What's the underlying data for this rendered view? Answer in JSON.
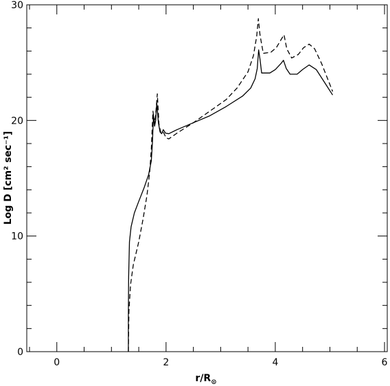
{
  "chart_data": {
    "type": "line",
    "title": "",
    "xlabel": "r/R",
    "xlabel_sub": "⊙",
    "ylabel": "Log D [cm² sec⁻¹]",
    "xlim": [
      -0.55,
      6.05
    ],
    "ylim": [
      0,
      30
    ],
    "grid": false,
    "legend": "none",
    "x_ticks_major": [
      0,
      2,
      4,
      6
    ],
    "x_ticks_minor": [
      -0.5,
      0.5,
      1,
      1.5,
      2.5,
      3,
      3.5,
      4.5,
      5,
      5.5
    ],
    "y_ticks_major": [
      0,
      10,
      20,
      30
    ],
    "y_ticks_minor": [
      2,
      4,
      6,
      8,
      12,
      14,
      16,
      18,
      22,
      24,
      26,
      28
    ],
    "x_tick_labels": [
      "0",
      "2",
      "4",
      "6"
    ],
    "y_tick_labels": [
      "0",
      "10",
      "20",
      "30"
    ],
    "series": [
      {
        "style": "solid",
        "color": "#000000",
        "points": [
          [
            1.31,
            0
          ],
          [
            1.31,
            3.0
          ],
          [
            1.315,
            6.5
          ],
          [
            1.33,
            9.5
          ],
          [
            1.36,
            10.8
          ],
          [
            1.42,
            12.0
          ],
          [
            1.5,
            13.0
          ],
          [
            1.6,
            14.2
          ],
          [
            1.68,
            15.3
          ],
          [
            1.73,
            16.5
          ],
          [
            1.75,
            18.0
          ],
          [
            1.77,
            20.4
          ],
          [
            1.79,
            19.5
          ],
          [
            1.81,
            20.0
          ],
          [
            1.83,
            21.5
          ],
          [
            1.86,
            19.8
          ],
          [
            1.89,
            19.0
          ],
          [
            1.92,
            18.85
          ],
          [
            1.95,
            19.2
          ],
          [
            1.99,
            18.9
          ],
          [
            2.05,
            18.85
          ],
          [
            2.2,
            19.2
          ],
          [
            2.5,
            19.8
          ],
          [
            2.8,
            20.4
          ],
          [
            3.1,
            21.2
          ],
          [
            3.4,
            22.1
          ],
          [
            3.55,
            22.8
          ],
          [
            3.63,
            23.6
          ],
          [
            3.67,
            24.5
          ],
          [
            3.695,
            26.1
          ],
          [
            3.72,
            25.3
          ],
          [
            3.75,
            24.1
          ],
          [
            3.9,
            24.1
          ],
          [
            4.0,
            24.4
          ],
          [
            4.1,
            24.9
          ],
          [
            4.15,
            25.2
          ],
          [
            4.2,
            24.5
          ],
          [
            4.27,
            24.0
          ],
          [
            4.4,
            24.0
          ],
          [
            4.5,
            24.4
          ],
          [
            4.62,
            24.8
          ],
          [
            4.75,
            24.4
          ],
          [
            4.9,
            23.3
          ],
          [
            5.05,
            22.2
          ]
        ]
      },
      {
        "style": "dashed",
        "color": "#000000",
        "points": [
          [
            1.31,
            0
          ],
          [
            1.32,
            3.5
          ],
          [
            1.35,
            5.8
          ],
          [
            1.4,
            7.5
          ],
          [
            1.5,
            9.5
          ],
          [
            1.58,
            11.5
          ],
          [
            1.65,
            13.5
          ],
          [
            1.7,
            15.5
          ],
          [
            1.73,
            17.5
          ],
          [
            1.76,
            20.8
          ],
          [
            1.79,
            19.8
          ],
          [
            1.81,
            20.5
          ],
          [
            1.84,
            22.3
          ],
          [
            1.87,
            19.7
          ],
          [
            1.9,
            19.0
          ],
          [
            1.93,
            19.1
          ],
          [
            1.96,
            18.9
          ],
          [
            2.0,
            18.5
          ],
          [
            2.05,
            18.4
          ],
          [
            2.2,
            18.9
          ],
          [
            2.5,
            19.8
          ],
          [
            2.8,
            20.8
          ],
          [
            3.1,
            21.8
          ],
          [
            3.3,
            22.8
          ],
          [
            3.5,
            24.2
          ],
          [
            3.6,
            25.6
          ],
          [
            3.66,
            27.3
          ],
          [
            3.69,
            28.8
          ],
          [
            3.72,
            27.4
          ],
          [
            3.78,
            25.8
          ],
          [
            3.92,
            25.9
          ],
          [
            4.02,
            26.3
          ],
          [
            4.12,
            27.1
          ],
          [
            4.16,
            27.4
          ],
          [
            4.21,
            26.2
          ],
          [
            4.3,
            25.4
          ],
          [
            4.42,
            25.7
          ],
          [
            4.52,
            26.3
          ],
          [
            4.62,
            26.6
          ],
          [
            4.72,
            26.2
          ],
          [
            4.85,
            24.9
          ],
          [
            5.05,
            22.5
          ]
        ]
      }
    ]
  }
}
